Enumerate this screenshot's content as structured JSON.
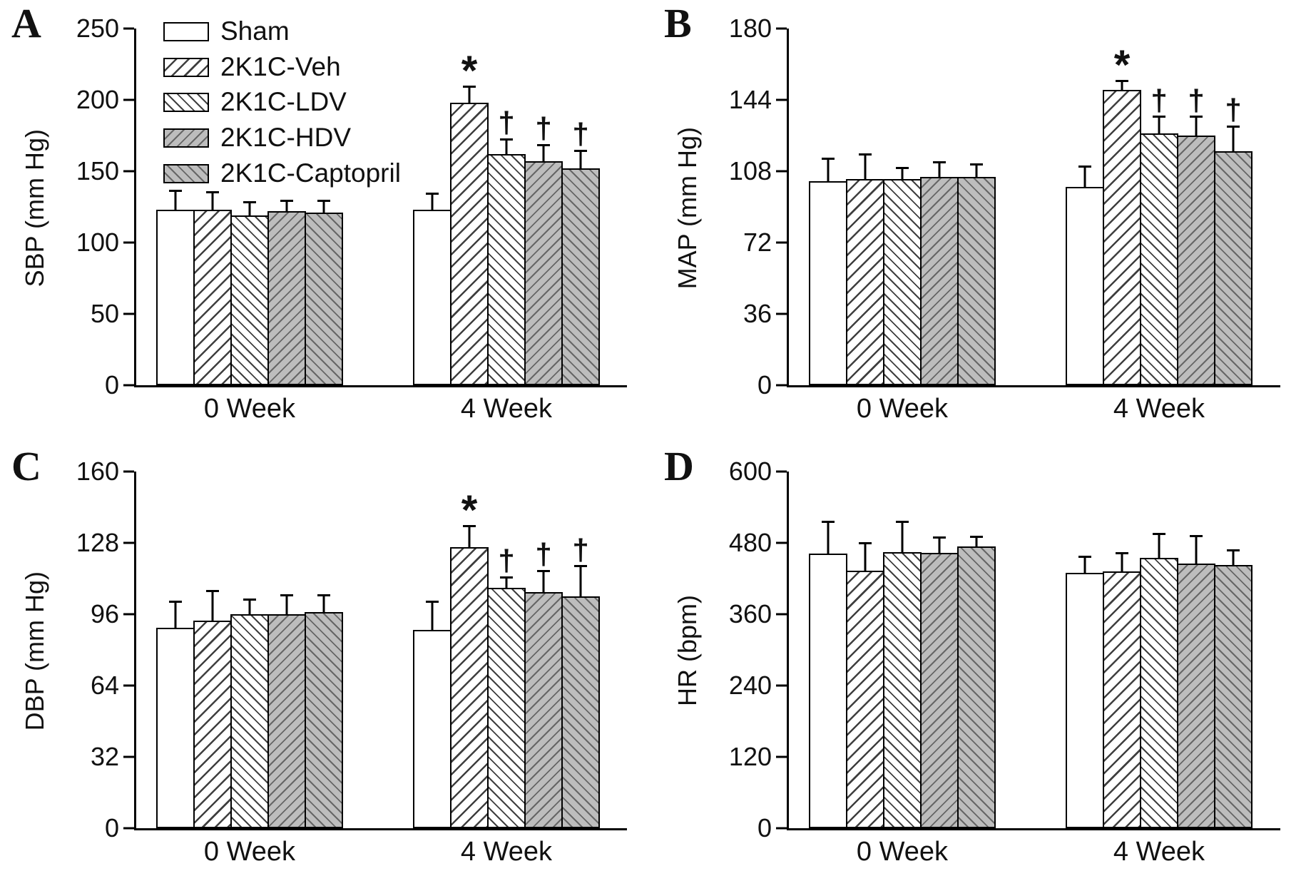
{
  "figure": {
    "background": "#ffffff",
    "colors": {
      "bar_border": "#000000",
      "white_fill": "#ffffff",
      "gray_fill": "#bdbdbd",
      "hatch_line": "#3f3f3f"
    },
    "legend": {
      "position": "top-left-panel-A",
      "entries": [
        {
          "label": "Sham",
          "pattern": "white"
        },
        {
          "label": "2K1C-Veh",
          "pattern": "hatch-up-wide"
        },
        {
          "label": "2K1C-LDV",
          "pattern": "hatch-down-fine"
        },
        {
          "label": "2K1C-HDV",
          "pattern": "gray-hatch-up"
        },
        {
          "label": "2K1C-Captopril",
          "pattern": "gray-hatch-down"
        }
      ]
    }
  },
  "chart_data": [
    {
      "id": "A",
      "type": "bar",
      "panel_label": "A",
      "ylabel": "SBP (mm Hg)",
      "ylim": [
        0,
        250
      ],
      "yticks": [
        0,
        50,
        100,
        150,
        200,
        250
      ],
      "grid": false,
      "categories": [
        "0 Week",
        "4 Week"
      ],
      "series": [
        {
          "name": "Sham",
          "pattern": "white",
          "values": [
            123,
            123
          ],
          "errors": [
            14,
            12
          ],
          "annotations": [
            "",
            ""
          ]
        },
        {
          "name": "2K1C-Veh",
          "pattern": "hatch-up-wide",
          "values": [
            123,
            198
          ],
          "errors": [
            13,
            12
          ],
          "annotations": [
            "",
            "*"
          ]
        },
        {
          "name": "2K1C-LDV",
          "pattern": "hatch-down-fine",
          "values": [
            119,
            162
          ],
          "errors": [
            10,
            11
          ],
          "annotations": [
            "",
            "†"
          ]
        },
        {
          "name": "2K1C-HDV",
          "pattern": "gray-hatch-up",
          "values": [
            122,
            157
          ],
          "errors": [
            8,
            12
          ],
          "annotations": [
            "",
            "†"
          ]
        },
        {
          "name": "2K1C-Captopril",
          "pattern": "gray-hatch-down",
          "values": [
            121,
            152
          ],
          "errors": [
            9,
            13
          ],
          "annotations": [
            "",
            "†"
          ]
        }
      ],
      "has_legend": true
    },
    {
      "id": "B",
      "type": "bar",
      "panel_label": "B",
      "ylabel": "MAP (mm Hg)",
      "ylim": [
        0,
        180
      ],
      "yticks": [
        0,
        36,
        72,
        108,
        144,
        180
      ],
      "grid": false,
      "categories": [
        "0 Week",
        "4 Week"
      ],
      "series": [
        {
          "name": "Sham",
          "pattern": "white",
          "values": [
            103,
            100
          ],
          "errors": [
            12,
            11
          ],
          "annotations": [
            "",
            ""
          ]
        },
        {
          "name": "2K1C-Veh",
          "pattern": "hatch-up-wide",
          "values": [
            104,
            149
          ],
          "errors": [
            13,
            5
          ],
          "annotations": [
            "",
            "*"
          ]
        },
        {
          "name": "2K1C-LDV",
          "pattern": "hatch-down-fine",
          "values": [
            104,
            127
          ],
          "errors": [
            6,
            9
          ],
          "annotations": [
            "",
            "†"
          ]
        },
        {
          "name": "2K1C-HDV",
          "pattern": "gray-hatch-up",
          "values": [
            105,
            126
          ],
          "errors": [
            8,
            10
          ],
          "annotations": [
            "",
            "†"
          ]
        },
        {
          "name": "2K1C-Captopril",
          "pattern": "gray-hatch-down",
          "values": [
            105,
            118
          ],
          "errors": [
            7,
            13
          ],
          "annotations": [
            "",
            "†"
          ]
        }
      ],
      "has_legend": false
    },
    {
      "id": "C",
      "type": "bar",
      "panel_label": "C",
      "ylabel": "DBP (mm Hg)",
      "ylim": [
        0,
        160
      ],
      "yticks": [
        0,
        32,
        64,
        96,
        128,
        160
      ],
      "grid": false,
      "categories": [
        "0 Week",
        "4 Week"
      ],
      "series": [
        {
          "name": "Sham",
          "pattern": "white",
          "values": [
            90,
            89
          ],
          "errors": [
            12,
            13
          ],
          "annotations": [
            "",
            ""
          ]
        },
        {
          "name": "2K1C-Veh",
          "pattern": "hatch-up-wide",
          "values": [
            93,
            126
          ],
          "errors": [
            14,
            10
          ],
          "annotations": [
            "",
            "*"
          ]
        },
        {
          "name": "2K1C-LDV",
          "pattern": "hatch-down-fine",
          "values": [
            96,
            108
          ],
          "errors": [
            7,
            5
          ],
          "annotations": [
            "",
            "†"
          ]
        },
        {
          "name": "2K1C-HDV",
          "pattern": "gray-hatch-up",
          "values": [
            96,
            106
          ],
          "errors": [
            9,
            10
          ],
          "annotations": [
            "",
            "†"
          ]
        },
        {
          "name": "2K1C-Captopril",
          "pattern": "gray-hatch-down",
          "values": [
            97,
            104
          ],
          "errors": [
            8,
            14
          ],
          "annotations": [
            "",
            "†"
          ]
        }
      ],
      "has_legend": false
    },
    {
      "id": "D",
      "type": "bar",
      "panel_label": "D",
      "ylabel": "HR (bpm)",
      "ylim": [
        0,
        600
      ],
      "yticks": [
        0,
        120,
        240,
        360,
        480,
        600
      ],
      "grid": false,
      "categories": [
        "0 Week",
        "4 Week"
      ],
      "series": [
        {
          "name": "Sham",
          "pattern": "white",
          "values": [
            462,
            430
          ],
          "errors": [
            55,
            28
          ],
          "annotations": [
            "",
            ""
          ]
        },
        {
          "name": "2K1C-Veh",
          "pattern": "hatch-up-wide",
          "values": [
            433,
            432
          ],
          "errors": [
            48,
            32
          ],
          "annotations": [
            "",
            ""
          ]
        },
        {
          "name": "2K1C-LDV",
          "pattern": "hatch-down-fine",
          "values": [
            465,
            455
          ],
          "errors": [
            52,
            42
          ],
          "annotations": [
            "",
            ""
          ]
        },
        {
          "name": "2K1C-HDV",
          "pattern": "gray-hatch-up",
          "values": [
            463,
            445
          ],
          "errors": [
            28,
            48
          ],
          "annotations": [
            "",
            ""
          ]
        },
        {
          "name": "2K1C-Captopril",
          "pattern": "gray-hatch-down",
          "values": [
            474,
            443
          ],
          "errors": [
            18,
            26
          ],
          "annotations": [
            "",
            ""
          ]
        }
      ],
      "has_legend": false
    }
  ]
}
